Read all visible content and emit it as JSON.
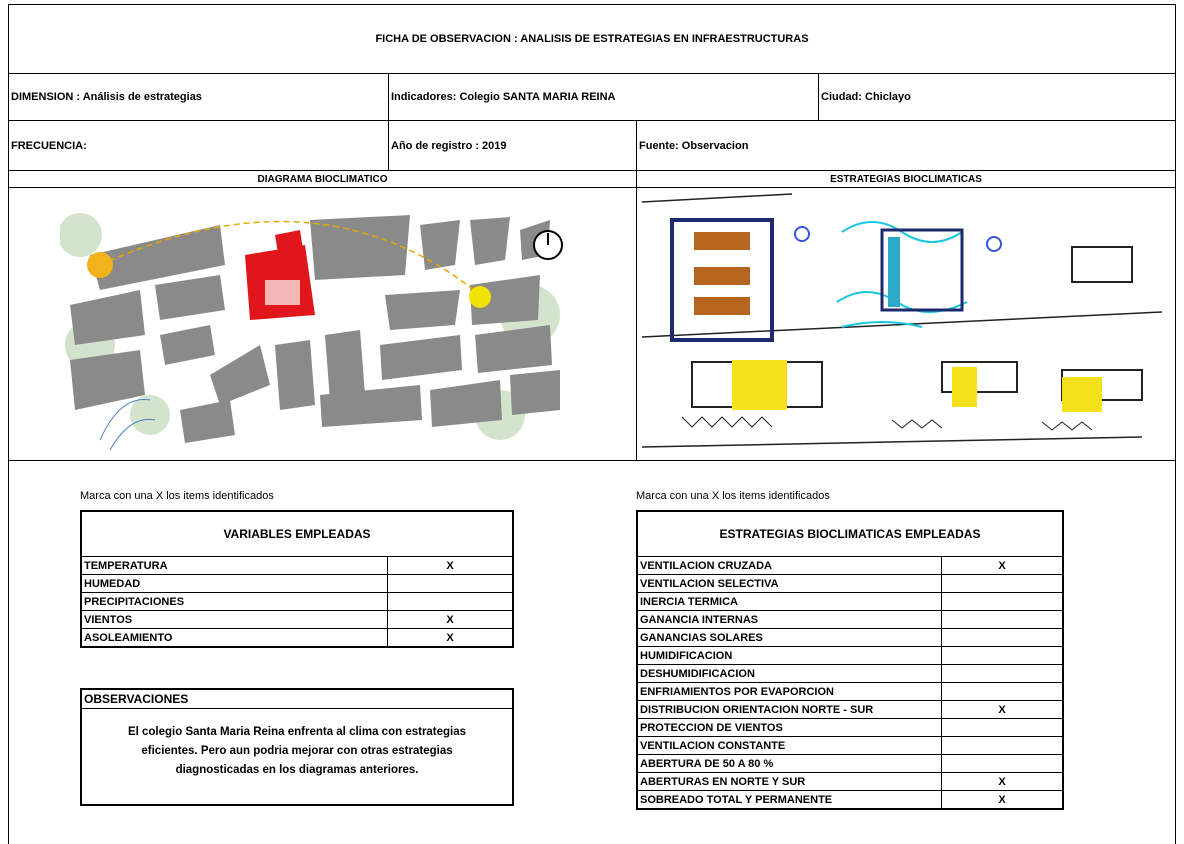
{
  "header": {
    "title": "FICHA DE OBSERVACION : ANALISIS DE ESTRATEGIAS EN INFRAESTRUCTURAS",
    "dimension": "DIMENSION : Análisis de estrategias",
    "indicadores": "Indicadores: Colegio  SANTA MARIA REINA",
    "ciudad": "Ciudad: Chiclayo",
    "frecuencia": "FRECUENCIA:",
    "anio": "Año de registro : 2019",
    "fuente": "Fuente: Observacion"
  },
  "sections": {
    "diagram": "DIAGRAMA BIOCLIMATICO",
    "strategies": "ESTRATEGIAS BIOCLIMATICAS"
  },
  "variables": {
    "note": "Marca con una X los items identificados",
    "header": "VARIABLES EMPLEADAS",
    "rows": [
      {
        "label": "TEMPERATURA",
        "mark": "X"
      },
      {
        "label": "HUMEDAD"
      },
      {
        "label": "PRECIPITACIONES"
      },
      {
        "label": "VIENTOS",
        "mark": "X"
      },
      {
        "label": "ASOLEAMIENTO",
        "mark": "X"
      }
    ]
  },
  "observaciones": {
    "title": "OBSERVACIONES",
    "text": "El colegio Santa Maria Reina enfrenta al clima con estrategias eficientes. Pero aun podria mejorar con otras estrategias diagnosticadas en los diagramas anteriores."
  },
  "estrategias": {
    "note": "Marca con una X los items identificados",
    "header": "ESTRATEGIAS BIOCLIMATICAS EMPLEADAS",
    "rows": [
      {
        "label": "VENTILACION CRUZADA",
        "mark": "X"
      },
      {
        "label": "VENTILACION SELECTIVA"
      },
      {
        "label": "INERCIA TERMICA"
      },
      {
        "label": "GANANCIA INTERNAS"
      },
      {
        "label": "GANANCIAS SOLARES"
      },
      {
        "label": "HUMIDIFICACION"
      },
      {
        "label": "DESHUMIDIFICACION"
      },
      {
        "label": "ENFRIAMIENTOS POR EVAPORCION"
      },
      {
        "label": "DISTRIBUCION ORIENTACION NORTE - SUR",
        "mark": "X"
      },
      {
        "label": "PROTECCION DE VIENTOS"
      },
      {
        "label": "VENTILACION CONSTANTE"
      },
      {
        "label": "ABERTURA DE 50 A 80 %"
      },
      {
        "label": "ABERTURAS EN NORTE Y SUR",
        "mark": "X"
      },
      {
        "label": "SOBREADO TOTAL Y PERMANENTE",
        "mark": "X"
      }
    ]
  }
}
